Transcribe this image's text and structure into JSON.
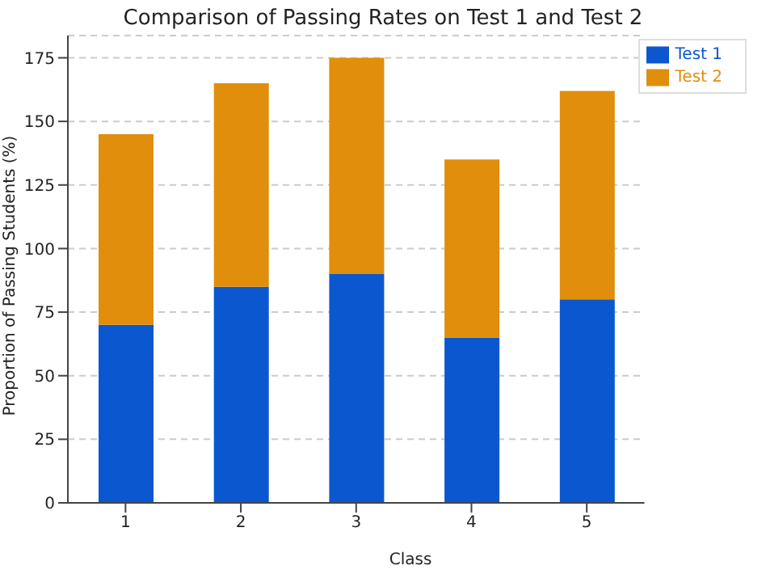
{
  "chart_data": {
    "type": "bar",
    "title": "Comparison of Passing Rates on Test 1 and Test 2",
    "xlabel": "Class",
    "ylabel": "Proportion of Passing Students (%)",
    "categories": [
      "1",
      "2",
      "3",
      "4",
      "5"
    ],
    "series": [
      {
        "name": "Test 1",
        "color": "#0b57d0",
        "values": [
          70,
          85,
          90,
          65,
          80
        ]
      },
      {
        "name": "Test 2",
        "color": "#e08e0b",
        "values": [
          75,
          80,
          85,
          70,
          82
        ]
      }
    ],
    "stacked": true,
    "ylim": [
      0,
      183.75
    ],
    "yticks": [
      0,
      25,
      50,
      75,
      100,
      125,
      150,
      175
    ],
    "grid": "y",
    "legend": "top right"
  }
}
